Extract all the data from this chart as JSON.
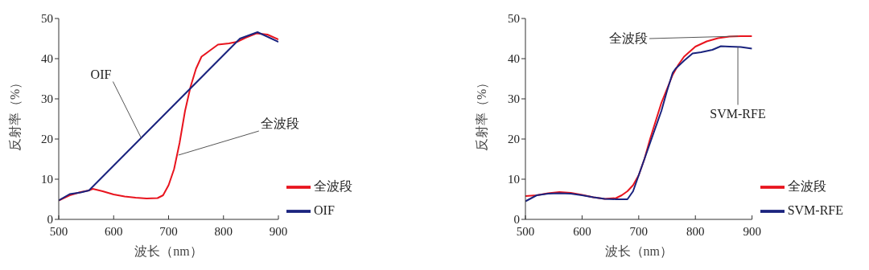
{
  "chart_data": [
    {
      "type": "line",
      "xlabel": "波长（nm）",
      "ylabel": "反射率（%）",
      "xlim": [
        500,
        900
      ],
      "xticks": [
        500,
        600,
        700,
        800,
        900
      ],
      "ylim": [
        0,
        50
      ],
      "yticks": [
        0,
        10,
        20,
        30,
        40,
        50
      ],
      "legend": "bottom right",
      "marker": "none",
      "line_style": "solid",
      "series": [
        {
          "name": "全波段",
          "color": "#e8141e",
          "x": [
            500,
            520,
            540,
            555,
            562,
            580,
            600,
            620,
            640,
            660,
            680,
            690,
            700,
            710,
            720,
            730,
            740,
            750,
            760,
            775,
            790,
            810,
            825,
            840,
            860,
            880,
            900
          ],
          "values": [
            4.7,
            6,
            6.8,
            7.2,
            7.6,
            7,
            6.2,
            5.7,
            5.4,
            5.2,
            5.3,
            6,
            8.5,
            12.5,
            19,
            27,
            33,
            37.5,
            40.5,
            42,
            43.5,
            43.8,
            44.2,
            45.2,
            46.3,
            46,
            44.8
          ]
        },
        {
          "name": "OIF",
          "color": "#1a237e",
          "x": [
            500,
            520,
            540,
            555,
            830,
            862,
            900
          ],
          "values": [
            4.7,
            6.3,
            6.7,
            7.2,
            45,
            46.6,
            44.2
          ]
        }
      ],
      "annotations": [
        {
          "text": "OIF",
          "x": 650,
          "y": 20.3
        },
        {
          "text": "全波段",
          "x": 718,
          "y": 16
        }
      ]
    },
    {
      "type": "line",
      "xlabel": "波长（nm）",
      "ylabel": "反射率（%）",
      "xlim": [
        500,
        900
      ],
      "xticks": [
        500,
        600,
        700,
        800,
        900
      ],
      "ylim": [
        0,
        50
      ],
      "yticks": [
        0,
        10,
        20,
        30,
        40,
        50
      ],
      "legend": "bottom right",
      "marker": "none",
      "line_style": "solid",
      "series": [
        {
          "name": "全波段",
          "color": "#e8141e",
          "x": [
            500,
            520,
            540,
            560,
            580,
            600,
            620,
            640,
            660,
            670,
            680,
            690,
            700,
            710,
            720,
            740,
            760,
            770,
            780,
            800,
            820,
            840,
            860,
            880,
            900
          ],
          "values": [
            5.8,
            6,
            6.5,
            6.8,
            6.6,
            6.1,
            5.5,
            5.1,
            5.3,
            6,
            7,
            8.5,
            11,
            15,
            20,
            29,
            36,
            38.5,
            40.5,
            43,
            44.3,
            45.1,
            45.5,
            45.6,
            45.6
          ]
        },
        {
          "name": "SVM-RFE",
          "color": "#1a237e",
          "x": [
            500,
            520,
            540,
            560,
            580,
            600,
            620,
            640,
            660,
            680,
            690,
            700,
            720,
            740,
            750,
            760,
            765,
            780,
            795,
            810,
            830,
            845,
            860,
            880,
            900
          ],
          "values": [
            4.5,
            6,
            6.4,
            6.5,
            6.4,
            6,
            5.5,
            5.1,
            5,
            5,
            7,
            11,
            19,
            27,
            32,
            36.5,
            37.5,
            39.5,
            41.3,
            41.6,
            42.2,
            43.1,
            43,
            42.9,
            42.5
          ]
        }
      ],
      "annotations": [
        {
          "text": "全波段",
          "x": 875,
          "y": 45.6
        },
        {
          "text": "SVM-RFE",
          "x": 875,
          "y": 42.9
        }
      ]
    }
  ]
}
